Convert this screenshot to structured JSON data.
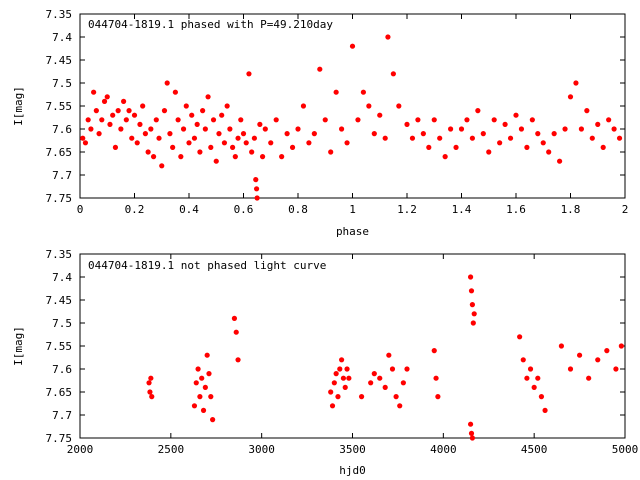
{
  "chart_data": [
    {
      "type": "scatter",
      "title": "044704-1819.1 phased with P=49.210day",
      "xlabel": "phase",
      "ylabel": "I[mag]",
      "xlim": [
        0,
        2
      ],
      "ylim": [
        7.35,
        7.75
      ],
      "y_inverted": true,
      "x_ticks": [
        "0",
        "0.2",
        "0.4",
        "0.6",
        "0.8",
        "1",
        "1.2",
        "1.4",
        "1.6",
        "1.8",
        "2"
      ],
      "y_ticks": [
        "7.35",
        "7.4",
        "7.45",
        "7.5",
        "7.55",
        "7.6",
        "7.65",
        "7.7",
        "7.75"
      ],
      "marker_color": "#ff0000",
      "series": [
        {
          "points": [
            [
              0.01,
              7.62
            ],
            [
              0.02,
              7.63
            ],
            [
              0.03,
              7.58
            ],
            [
              0.04,
              7.6
            ],
            [
              0.05,
              7.52
            ],
            [
              0.06,
              7.56
            ],
            [
              0.07,
              7.61
            ],
            [
              0.08,
              7.58
            ],
            [
              0.09,
              7.54
            ],
            [
              0.1,
              7.53
            ],
            [
              0.11,
              7.59
            ],
            [
              0.12,
              7.57
            ],
            [
              0.13,
              7.64
            ],
            [
              0.14,
              7.56
            ],
            [
              0.15,
              7.6
            ],
            [
              0.16,
              7.54
            ],
            [
              0.17,
              7.58
            ],
            [
              0.18,
              7.56
            ],
            [
              0.19,
              7.62
            ],
            [
              0.2,
              7.57
            ],
            [
              0.21,
              7.63
            ],
            [
              0.22,
              7.59
            ],
            [
              0.23,
              7.55
            ],
            [
              0.24,
              7.61
            ],
            [
              0.25,
              7.65
            ],
            [
              0.26,
              7.6
            ],
            [
              0.27,
              7.66
            ],
            [
              0.28,
              7.58
            ],
            [
              0.29,
              7.62
            ],
            [
              0.3,
              7.68
            ],
            [
              0.31,
              7.56
            ],
            [
              0.32,
              7.5
            ],
            [
              0.33,
              7.61
            ],
            [
              0.34,
              7.64
            ],
            [
              0.35,
              7.52
            ],
            [
              0.36,
              7.58
            ],
            [
              0.37,
              7.66
            ],
            [
              0.38,
              7.6
            ],
            [
              0.39,
              7.55
            ],
            [
              0.4,
              7.63
            ],
            [
              0.41,
              7.57
            ],
            [
              0.42,
              7.62
            ],
            [
              0.43,
              7.59
            ],
            [
              0.44,
              7.65
            ],
            [
              0.45,
              7.56
            ],
            [
              0.46,
              7.6
            ],
            [
              0.47,
              7.53
            ],
            [
              0.48,
              7.64
            ],
            [
              0.49,
              7.58
            ],
            [
              0.5,
              7.67
            ],
            [
              0.51,
              7.61
            ],
            [
              0.52,
              7.57
            ],
            [
              0.53,
              7.63
            ],
            [
              0.54,
              7.55
            ],
            [
              0.55,
              7.6
            ],
            [
              0.56,
              7.64
            ],
            [
              0.57,
              7.66
            ],
            [
              0.58,
              7.62
            ],
            [
              0.59,
              7.58
            ],
            [
              0.6,
              7.61
            ],
            [
              0.61,
              7.63
            ],
            [
              0.62,
              7.48
            ],
            [
              0.63,
              7.65
            ],
            [
              0.64,
              7.62
            ],
            [
              0.645,
              7.71
            ],
            [
              0.648,
              7.73
            ],
            [
              0.65,
              7.75
            ],
            [
              0.66,
              7.59
            ],
            [
              0.67,
              7.66
            ],
            [
              0.68,
              7.6
            ],
            [
              0.7,
              7.63
            ],
            [
              0.72,
              7.58
            ],
            [
              0.74,
              7.66
            ],
            [
              0.76,
              7.61
            ],
            [
              0.78,
              7.64
            ],
            [
              0.8,
              7.6
            ],
            [
              0.82,
              7.55
            ],
            [
              0.84,
              7.63
            ],
            [
              0.86,
              7.61
            ],
            [
              0.88,
              7.47
            ],
            [
              0.9,
              7.58
            ],
            [
              0.92,
              7.65
            ],
            [
              0.94,
              7.52
            ],
            [
              0.96,
              7.6
            ],
            [
              0.98,
              7.63
            ],
            [
              1.0,
              7.42
            ],
            [
              1.02,
              7.58
            ],
            [
              1.04,
              7.52
            ],
            [
              1.06,
              7.55
            ],
            [
              1.08,
              7.61
            ],
            [
              1.1,
              7.57
            ],
            [
              1.12,
              7.62
            ],
            [
              1.13,
              7.4
            ],
            [
              1.15,
              7.48
            ],
            [
              1.17,
              7.55
            ],
            [
              1.2,
              7.59
            ],
            [
              1.22,
              7.62
            ],
            [
              1.24,
              7.58
            ],
            [
              1.26,
              7.61
            ],
            [
              1.28,
              7.64
            ],
            [
              1.3,
              7.58
            ],
            [
              1.32,
              7.62
            ],
            [
              1.34,
              7.66
            ],
            [
              1.36,
              7.6
            ],
            [
              1.38,
              7.64
            ],
            [
              1.4,
              7.6
            ],
            [
              1.42,
              7.58
            ],
            [
              1.44,
              7.62
            ],
            [
              1.46,
              7.56
            ],
            [
              1.48,
              7.61
            ],
            [
              1.5,
              7.65
            ],
            [
              1.52,
              7.58
            ],
            [
              1.54,
              7.63
            ],
            [
              1.56,
              7.59
            ],
            [
              1.58,
              7.62
            ],
            [
              1.6,
              7.57
            ],
            [
              1.62,
              7.6
            ],
            [
              1.64,
              7.64
            ],
            [
              1.66,
              7.58
            ],
            [
              1.68,
              7.61
            ],
            [
              1.7,
              7.63
            ],
            [
              1.72,
              7.65
            ],
            [
              1.74,
              7.61
            ],
            [
              1.76,
              7.67
            ],
            [
              1.78,
              7.6
            ],
            [
              1.8,
              7.53
            ],
            [
              1.82,
              7.5
            ],
            [
              1.84,
              7.6
            ],
            [
              1.86,
              7.56
            ],
            [
              1.88,
              7.62
            ],
            [
              1.9,
              7.59
            ],
            [
              1.92,
              7.64
            ],
            [
              1.94,
              7.58
            ],
            [
              1.96,
              7.6
            ],
            [
              1.98,
              7.62
            ]
          ]
        }
      ]
    },
    {
      "type": "scatter",
      "title": "044704-1819.1 not phased light curve",
      "xlabel": "hjd0",
      "ylabel": "I[mag]",
      "xlim": [
        2000,
        5000
      ],
      "ylim": [
        7.35,
        7.75
      ],
      "y_inverted": true,
      "x_ticks": [
        "2000",
        "2500",
        "3000",
        "3500",
        "4000",
        "4500",
        "5000"
      ],
      "y_ticks": [
        "7.35",
        "7.4",
        "7.45",
        "7.5",
        "7.55",
        "7.6",
        "7.65",
        "7.7",
        "7.75"
      ],
      "marker_color": "#ff0000",
      "series": [
        {
          "points": [
            [
              2380,
              7.63
            ],
            [
              2385,
              7.65
            ],
            [
              2390,
              7.62
            ],
            [
              2395,
              7.66
            ],
            [
              2630,
              7.68
            ],
            [
              2640,
              7.63
            ],
            [
              2650,
              7.6
            ],
            [
              2660,
              7.66
            ],
            [
              2670,
              7.62
            ],
            [
              2680,
              7.69
            ],
            [
              2690,
              7.64
            ],
            [
              2700,
              7.57
            ],
            [
              2710,
              7.61
            ],
            [
              2720,
              7.66
            ],
            [
              2730,
              7.71
            ],
            [
              2850,
              7.49
            ],
            [
              2860,
              7.52
            ],
            [
              2870,
              7.58
            ],
            [
              3380,
              7.65
            ],
            [
              3390,
              7.68
            ],
            [
              3400,
              7.63
            ],
            [
              3410,
              7.61
            ],
            [
              3420,
              7.66
            ],
            [
              3430,
              7.6
            ],
            [
              3440,
              7.58
            ],
            [
              3450,
              7.62
            ],
            [
              3460,
              7.64
            ],
            [
              3470,
              7.6
            ],
            [
              3480,
              7.62
            ],
            [
              3550,
              7.66
            ],
            [
              3600,
              7.63
            ],
            [
              3620,
              7.61
            ],
            [
              3650,
              7.62
            ],
            [
              3680,
              7.64
            ],
            [
              3700,
              7.57
            ],
            [
              3720,
              7.6
            ],
            [
              3740,
              7.66
            ],
            [
              3760,
              7.68
            ],
            [
              3780,
              7.63
            ],
            [
              3800,
              7.6
            ],
            [
              3950,
              7.56
            ],
            [
              3960,
              7.62
            ],
            [
              3970,
              7.66
            ],
            [
              4150,
              7.4
            ],
            [
              4155,
              7.43
            ],
            [
              4160,
              7.46
            ],
            [
              4165,
              7.5
            ],
            [
              4170,
              7.48
            ],
            [
              4150,
              7.72
            ],
            [
              4155,
              7.74
            ],
            [
              4160,
              7.75
            ],
            [
              4420,
              7.53
            ],
            [
              4440,
              7.58
            ],
            [
              4460,
              7.62
            ],
            [
              4480,
              7.6
            ],
            [
              4500,
              7.64
            ],
            [
              4520,
              7.62
            ],
            [
              4540,
              7.66
            ],
            [
              4560,
              7.69
            ],
            [
              4650,
              7.55
            ],
            [
              4700,
              7.6
            ],
            [
              4750,
              7.57
            ],
            [
              4800,
              7.62
            ],
            [
              4850,
              7.58
            ],
            [
              4900,
              7.56
            ],
            [
              4950,
              7.6
            ],
            [
              4980,
              7.55
            ]
          ]
        }
      ]
    }
  ]
}
